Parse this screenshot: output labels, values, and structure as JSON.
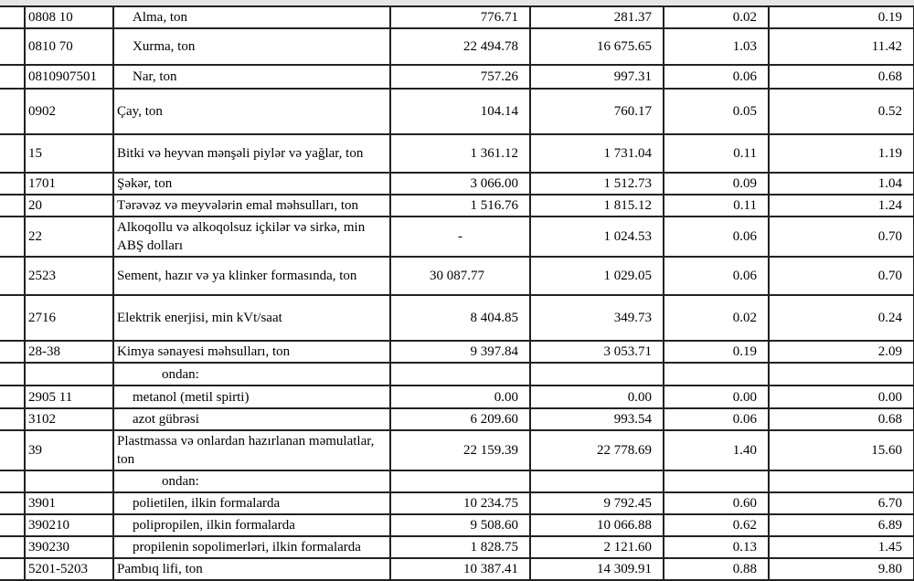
{
  "rows": [
    {
      "code": "0808 10",
      "name": "Alma, ton",
      "indent": 1,
      "v1": "776.71",
      "v2": "281.37",
      "v3": "0.02",
      "v4": "0.19",
      "h": 24
    },
    {
      "code": "0810 70",
      "name": "Xurma, ton",
      "indent": 1,
      "v1": "22 494.78",
      "v2": "16 675.65",
      "v3": "1.03",
      "v4": "11.42",
      "h": 40
    },
    {
      "code": "0810907501",
      "name": "Nar, ton",
      "indent": 1,
      "v1": "757.26",
      "v2": "997.31",
      "v3": "0.06",
      "v4": "0.68",
      "h": 26
    },
    {
      "code": "0902",
      "name": "Çay, ton",
      "indent": 0,
      "v1": "104.14",
      "v2": "760.17",
      "v3": "0.05",
      "v4": "0.52",
      "h": 50
    },
    {
      "code": "15",
      "name": "Bitki və heyvan mənşəli piylər və yağlar, ton",
      "indent": 0,
      "v1": "1 361.12",
      "v2": "1 731.04",
      "v3": "0.11",
      "v4": "1.19",
      "h": 42
    },
    {
      "code": "1701",
      "name": "Şəkər, ton",
      "indent": 0,
      "v1": "3 066.00",
      "v2": "1 512.73",
      "v3": "0.09",
      "v4": "1.04",
      "h": 24
    },
    {
      "code": "20",
      "name": "Tərəvəz və meyvələrin emal məhsulları, ton",
      "indent": 0,
      "v1": "1 516.76",
      "v2": "1 815.12",
      "v3": "0.11",
      "v4": "1.24",
      "h": 24
    },
    {
      "code": "22",
      "name": "Alkoqollu və alkoqolsuz içkilər və sirkə, min ABŞ dolları",
      "indent": 0,
      "v1": "-",
      "v1align": "center",
      "v2": "1 024.53",
      "v3": "0.06",
      "v4": "0.70",
      "h": 44
    },
    {
      "code": "2523",
      "name": "Sement, hazır və ya klinker formasında, ton",
      "indent": 0,
      "v1": "30 087.77",
      "v1align": "off",
      "v2": "1 029.05",
      "v3": "0.06",
      "v4": "0.70",
      "h": 42
    },
    {
      "code": "2716",
      "name": "Elektrik enerjisi, min kVt/saat",
      "indent": 0,
      "v1": "8 404.85",
      "v2": "349.73",
      "v3": "0.02",
      "v4": "0.24",
      "h": 50
    },
    {
      "code": "28-38",
      "name": "Kimya sənayesi məhsulları, ton",
      "indent": 0,
      "v1": "9 397.84",
      "v2": "3 053.71",
      "v3": "0.19",
      "v4": "2.09",
      "h": 24
    },
    {
      "code": "",
      "name": "ondan:",
      "indent": 2,
      "v1": "",
      "v2": "",
      "v3": "",
      "v4": "",
      "h": 25
    },
    {
      "code": "2905 11",
      "name": "metanol (metil spirti)",
      "indent": 1,
      "v1": "0.00",
      "v2": "0.00",
      "v3": "0.00",
      "v4": "0.00",
      "h": 25
    },
    {
      "code": "3102",
      "name": "azot gübrəsi",
      "indent": 1,
      "v1": "6 209.60",
      "v2": "993.54",
      "v3": "0.06",
      "v4": "0.68",
      "h": 24
    },
    {
      "code": "39",
      "name": "Plastmassa və onlardan hazırlanan məmulatlar, ton",
      "indent": 0,
      "v1": "22 159.39",
      "v2": "22 778.69",
      "v3": "1.40",
      "v4": "15.60",
      "h": 44
    },
    {
      "code": "",
      "name": "ondan:",
      "indent": 2,
      "v1": "",
      "v2": "",
      "v3": "",
      "v4": "",
      "h": 24
    },
    {
      "code": "3901",
      "name": "polietilen, ilkin formalarda",
      "indent": 1,
      "v1": "10 234.75",
      "v2": "9 792.45",
      "v3": "0.60",
      "v4": "6.70",
      "h": 24
    },
    {
      "code": "390210",
      "name": "polipropilen, ilkin formalarda",
      "indent": 1,
      "v1": "9 508.60",
      "v2": "10 066.88",
      "v3": "0.62",
      "v4": "6.89",
      "h": 24
    },
    {
      "code": "390230",
      "name": "propilenin sopolimerləri, ilkin formalarda",
      "indent": 1,
      "v1": "1 828.75",
      "v2": "2 121.60",
      "v3": "0.13",
      "v4": "1.45",
      "h": 24
    },
    {
      "code": "5201-5203",
      "name": "Pambıq lifi, ton",
      "indent": 0,
      "v1": "10 387.41",
      "v2": "14 309.91",
      "v3": "0.88",
      "v4": "9.80",
      "h": 24
    }
  ]
}
